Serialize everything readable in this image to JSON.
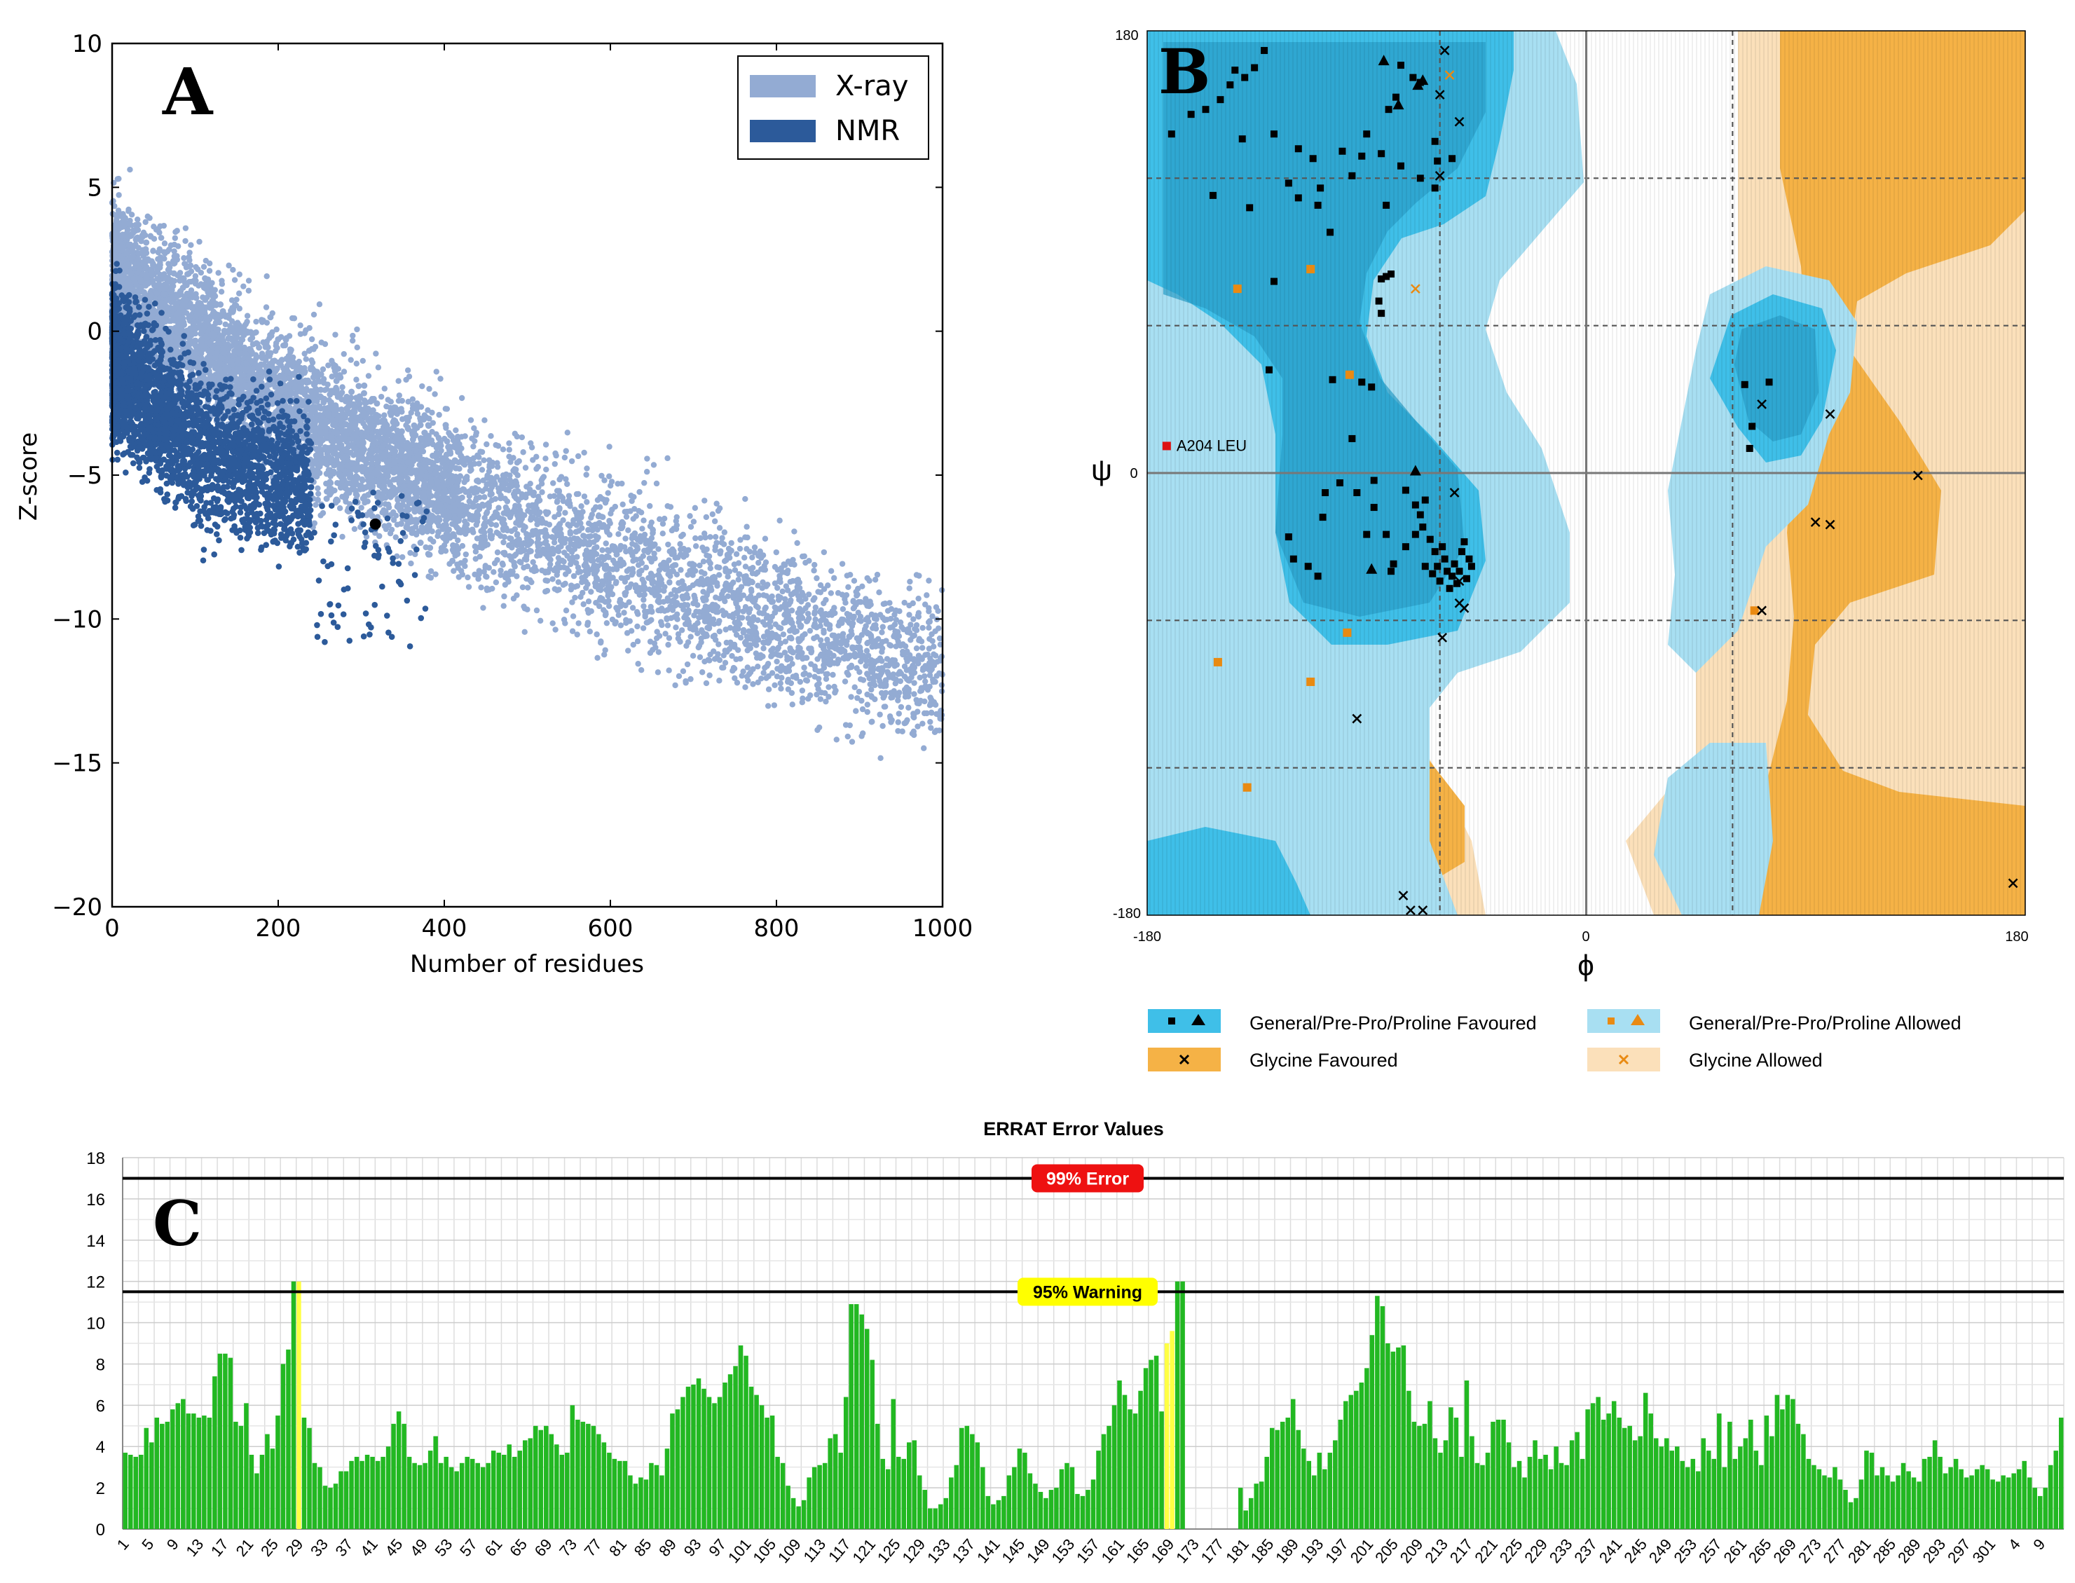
{
  "colors": {
    "xray": "#93abd3",
    "nmr": "#2c5a9a",
    "general_favoured": "#3fbfe8",
    "general_allowed": "#a8dff2",
    "glycine_favoured": "#f5b246",
    "glycine_allowed": "#fbe0ba",
    "errat_bar": "#22b822",
    "errat_warning_bar": "#ffff44",
    "error_badge": "#ee1111",
    "warning_badge": "#ffff00"
  },
  "panels": {
    "a": {
      "letter": "A"
    },
    "b": {
      "letter": "B"
    },
    "c": {
      "letter": "C"
    }
  },
  "chart_data": [
    {
      "id": "A",
      "type": "scatter",
      "title": "",
      "xlabel": "Number of residues",
      "ylabel": "Z-score",
      "xlim": [
        0,
        1000
      ],
      "ylim": [
        -20,
        10
      ],
      "xticks": [
        "0",
        "200",
        "400",
        "600",
        "800",
        "1000"
      ],
      "yticks": [
        "10",
        "5",
        "0",
        "−5",
        "−10",
        "−15",
        "−20"
      ],
      "legend": {
        "position": "top-right",
        "entries": [
          "X-ray",
          "NMR"
        ]
      },
      "series": [
        {
          "name": "X-ray",
          "description": "dense point cloud",
          "trend": [
            [
              0,
              2
            ],
            [
              200,
              -2.5
            ],
            [
              400,
              -5.5
            ],
            [
              600,
              -8
            ],
            [
              800,
              -10
            ],
            [
              1000,
              -12
            ]
          ]
        },
        {
          "name": "NMR",
          "description": "dense point cloud",
          "trend": [
            [
              0,
              -1
            ],
            [
              100,
              -4
            ],
            [
              200,
              -5
            ],
            [
              300,
              -6
            ]
          ]
        }
      ],
      "highlight": {
        "x": 317,
        "y": -6.7
      }
    },
    {
      "id": "B",
      "type": "scatter",
      "title": "Ramachandran plot",
      "xlabel": "ϕ",
      "ylabel": "ψ",
      "xlim": [
        -180,
        180
      ],
      "ylim": [
        -180,
        180
      ],
      "x_tick_labels": [
        "-180",
        "0",
        "180"
      ],
      "y_tick_labels": [
        "180",
        "0",
        "-180"
      ],
      "outlier_label": "A204  LEU",
      "outlier": [
        -172,
        11
      ],
      "legend": [
        "General/Pre-Pro/Proline Favoured",
        "General/Pre-Pro/Proline Allowed",
        "Glycine Favoured",
        "Glycine Allowed"
      ],
      "favoured_points": [
        [
          -170,
          138
        ],
        [
          -162,
          146
        ],
        [
          -156,
          148
        ],
        [
          -150,
          152
        ],
        [
          -146,
          158
        ],
        [
          -141,
          136
        ],
        [
          -128,
          138
        ],
        [
          -118,
          132
        ],
        [
          -112,
          128
        ],
        [
          -100,
          131
        ],
        [
          -92,
          129
        ],
        [
          -90,
          138
        ],
        [
          -84,
          130
        ],
        [
          -81,
          148
        ],
        [
          -78,
          153
        ],
        [
          -76,
          166
        ],
        [
          -71,
          161
        ],
        [
          -68,
          159
        ],
        [
          -68,
          120
        ],
        [
          -62,
          135
        ],
        [
          -61,
          127
        ],
        [
          -55,
          128
        ],
        [
          -109,
          116
        ],
        [
          -110,
          109
        ],
        [
          -118,
          112
        ],
        [
          -138,
          108
        ],
        [
          -122,
          118
        ],
        [
          -105,
          98
        ],
        [
          -96,
          121
        ],
        [
          -82,
          109
        ],
        [
          -76,
          125
        ],
        [
          -62,
          116
        ],
        [
          -153,
          113
        ],
        [
          -128,
          78
        ],
        [
          -84,
          79
        ],
        [
          -82,
          80
        ],
        [
          -80,
          81
        ],
        [
          -84,
          65
        ],
        [
          -85,
          70
        ],
        [
          -130,
          42
        ],
        [
          -104,
          38
        ],
        [
          -92,
          37
        ],
        [
          -88,
          35
        ],
        [
          -96,
          14
        ],
        [
          -122,
          -26
        ],
        [
          -108,
          -18
        ],
        [
          -101,
          -4
        ],
        [
          -94,
          -8
        ],
        [
          -87,
          -3
        ],
        [
          -87,
          -14
        ],
        [
          -82,
          -25
        ],
        [
          -79,
          -37
        ],
        [
          -74,
          -7
        ],
        [
          -70,
          -13
        ],
        [
          -68,
          -17
        ],
        [
          -67,
          -22
        ],
        [
          -66,
          -11
        ],
        [
          -64,
          -27
        ],
        [
          -63,
          -41
        ],
        [
          -62,
          -32
        ],
        [
          -61,
          -38
        ],
        [
          -60,
          -44
        ],
        [
          -59,
          -30
        ],
        [
          -58,
          -35
        ],
        [
          -57,
          -40
        ],
        [
          -56,
          -47
        ],
        [
          -55,
          -42
        ],
        [
          -54,
          -37
        ],
        [
          -53,
          -45
        ],
        [
          -52,
          -40
        ],
        [
          -51,
          -32
        ],
        [
          -50,
          -28
        ],
        [
          -49,
          -43
        ],
        [
          -48,
          -35
        ],
        [
          -47,
          -38
        ],
        [
          -66,
          -38
        ],
        [
          -70,
          -25
        ],
        [
          -74,
          -30
        ],
        [
          -80,
          -40
        ],
        [
          -110,
          -42
        ],
        [
          -114,
          -38
        ],
        [
          -120,
          -35
        ],
        [
          -107,
          -8
        ],
        [
          -90,
          -25
        ],
        [
          65,
          36
        ],
        [
          75,
          37
        ],
        [
          68,
          19
        ],
        [
          67,
          10
        ],
        [
          -132,
          172
        ],
        [
          -136,
          165
        ],
        [
          -144,
          164
        ],
        [
          -140,
          161
        ]
      ],
      "favoured_triangles": [
        [
          -83,
          168
        ],
        [
          -69,
          158
        ],
        [
          -67,
          160
        ],
        [
          -77,
          150
        ],
        [
          -88,
          -39
        ],
        [
          -70,
          1
        ]
      ],
      "allowed_points": [
        [
          -113,
          83
        ],
        [
          -143,
          75
        ],
        [
          -97,
          40
        ],
        [
          -113,
          -85
        ],
        [
          -98,
          -65
        ],
        [
          -151,
          -77
        ],
        [
          -139,
          -128
        ],
        [
          69,
          -56
        ]
      ],
      "glycine_points": [
        [
          -75,
          -172
        ],
        [
          -72,
          -178
        ],
        [
          -67,
          -178
        ],
        [
          -54,
          -8
        ],
        [
          -52,
          -44
        ],
        [
          -52,
          -53
        ],
        [
          -50,
          -55
        ],
        [
          -59,
          -67
        ],
        [
          -94,
          -100
        ],
        [
          72,
          -56
        ],
        [
          -58,
          172
        ],
        [
          -52,
          143
        ],
        [
          -60,
          121
        ],
        [
          -60,
          154
        ],
        [
          72,
          28
        ],
        [
          100,
          24
        ],
        [
          94,
          -20
        ],
        [
          100,
          -21
        ],
        [
          136,
          -1
        ],
        [
          175,
          -167
        ]
      ],
      "glycine_allowed_points": [
        [
          -70,
          75
        ],
        [
          -56,
          162
        ]
      ]
    },
    {
      "id": "C",
      "type": "bar",
      "title": "ERRAT Error Values",
      "ylim": [
        0,
        18
      ],
      "yticks": [
        "0",
        "2",
        "4",
        "6",
        "8",
        "10",
        "12",
        "14",
        "16",
        "18"
      ],
      "thresholds": [
        {
          "label": "99% Error",
          "value": 17
        },
        {
          "label": "95% Warning",
          "value": 11.5
        }
      ],
      "x_tick_labels": [
        "1",
        "5",
        "9",
        "13",
        "17",
        "21",
        "25",
        "29",
        "33",
        "37",
        "41",
        "45",
        "49",
        "53",
        "57",
        "61",
        "65",
        "69",
        "73",
        "77",
        "81",
        "85",
        "89",
        "93",
        "97",
        "101",
        "105",
        "109",
        "113",
        "117",
        "121",
        "125",
        "129",
        "133",
        "137",
        "141",
        "145",
        "149",
        "153",
        "157",
        "161",
        "165",
        "169",
        "173",
        "177",
        "181",
        "185",
        "189",
        "193",
        "197",
        "201",
        "205",
        "209",
        "213",
        "217",
        "221",
        "225",
        "229",
        "233",
        "237",
        "241",
        "245",
        "249",
        "253",
        "257",
        "261",
        "265",
        "269",
        "273",
        "277",
        "281",
        "285",
        "289",
        "293",
        "297",
        "301",
        "4",
        "9"
      ],
      "values": [
        3.7,
        3.6,
        3.5,
        3.6,
        4.9,
        4.2,
        5.4,
        5.1,
        5.2,
        5.8,
        6.1,
        6.3,
        5.6,
        5.6,
        5.4,
        5.5,
        5.4,
        7.4,
        8.5,
        8.5,
        8.3,
        5.2,
        5.0,
        6.1,
        3.6,
        2.7,
        3.6,
        4.6,
        3.9,
        5.5,
        8.0,
        8.7,
        12,
        12,
        5.4,
        4.9,
        3.2,
        3.0,
        2.1,
        2.0,
        2.2,
        2.8,
        2.8,
        3.3,
        3.5,
        3.3,
        3.6,
        3.5,
        3.3,
        3.5,
        4.0,
        5.1,
        5.7,
        5.1,
        3.5,
        3.2,
        3.1,
        3.2,
        3.8,
        4.5,
        3.2,
        3.5,
        3.0,
        2.8,
        3.2,
        3.5,
        3.4,
        3.2,
        3.0,
        3.2,
        3.8,
        3.7,
        3.6,
        4.1,
        3.5,
        3.8,
        4.3,
        4.4,
        5.0,
        4.8,
        5.0,
        4.6,
        4.1,
        3.6,
        3.7,
        6.0,
        5.3,
        5.2,
        5.1,
        5.0,
        4.6,
        4.2,
        3.7,
        3.4,
        3.3,
        3.3,
        2.6,
        2.2,
        2.5,
        2.4,
        3.2,
        3.1,
        2.6,
        3.9,
        5.6,
        5.8,
        6.4,
        6.9,
        7.0,
        7.3,
        6.8,
        6.4,
        6.1,
        6.4,
        7.1,
        7.5,
        7.9,
        8.9,
        8.4,
        6.9,
        6.5,
        6.0,
        5.4,
        5.5,
        3.5,
        3.2,
        2.1,
        1.5,
        1.1,
        1.4,
        2.5,
        3.0,
        3.1,
        3.2,
        4.4,
        4.6,
        3.7,
        6.4,
        10.9,
        10.9,
        10.4,
        9.7,
        8.2,
        5.1,
        3.4,
        2.9,
        6.3,
        3.5,
        3.4,
        4.2,
        4.3,
        2.6,
        1.9,
        1.0,
        1.0,
        1.2,
        1.5,
        2.5,
        3.1,
        4.9,
        5.0,
        4.6,
        4.2,
        3.0,
        1.6,
        1.2,
        1.4,
        1.6,
        2.6,
        3.0,
        3.9,
        3.7,
        2.7,
        2.2,
        1.8,
        1.5,
        1.9,
        2.0,
        2.9,
        3.2,
        3.0,
        1.7,
        1.6,
        1.9,
        2.4,
        3.8,
        4.6,
        5.0,
        6.0,
        7.2,
        6.5,
        5.8,
        5.6,
        6.7,
        7.8,
        8.2,
        8.4,
        5.7,
        9.0,
        9.6,
        12,
        12,
        0,
        0,
        0,
        0,
        0,
        0,
        0,
        0,
        0,
        0,
        2.0,
        0.9,
        1.5,
        2.2,
        2.3,
        3.5,
        4.9,
        4.8,
        5.2,
        5.4,
        6.3,
        4.8,
        3.9,
        3.3,
        2.6,
        3.7,
        2.9,
        3.7,
        4.3,
        5.3,
        6.2,
        6.5,
        6.7,
        7.1,
        7.8,
        9.4,
        11.3,
        10.8,
        9.0,
        8.6,
        8.8,
        8.9,
        6.7,
        5.2,
        5.0,
        5.1,
        6.2,
        4.4,
        3.7,
        4.3,
        5.9,
        5.4,
        3.5,
        7.2,
        4.5,
        3.2,
        3.1,
        3.7,
        5.2,
        5.3,
        5.3,
        4.2,
        3.0,
        3.3,
        2.5,
        3.5,
        4.3,
        3.4,
        3.6,
        2.9,
        4.0,
        3.2,
        3.1,
        4.3,
        4.7,
        3.4,
        5.8,
        6.1,
        6.4,
        5.3,
        5.6,
        6.2,
        5.4,
        4.9,
        5.0,
        4.3,
        4.5,
        6.6,
        5.6,
        4.4,
        4.0,
        4.4,
        3.8,
        4.0,
        3.3,
        3.0,
        3.4,
        2.8,
        4.4,
        3.8,
        3.4,
        5.6,
        3.0,
        5.2,
        3.4,
        4.0,
        4.4,
        5.3,
        3.8,
        3.1,
        5.5,
        4.5,
        6.5,
        5.8,
        6.5,
        6.3,
        5.1,
        4.6,
        3.4,
        3.1,
        2.9,
        2.6,
        2.5,
        3.0,
        2.4,
        1.9,
        1.3,
        1.5,
        2.4,
        3.8,
        3.7,
        2.6,
        3.0,
        2.6,
        2.3,
        2.6,
        3.2,
        2.8,
        2.5,
        2.3,
        3.4,
        3.5,
        4.3,
        3.5,
        2.7,
        3.0,
        3.4,
        2.9,
        2.5,
        2.6,
        2.9,
        3.1,
        2.9,
        2.4,
        2.3,
        2.6,
        2.5,
        2.7,
        2.9,
        3.3,
        2.5,
        2.0,
        1.6,
        2.0,
        3.1,
        3.8,
        5.4
      ],
      "warning_indices": [
        33,
        198,
        199
      ]
    }
  ]
}
